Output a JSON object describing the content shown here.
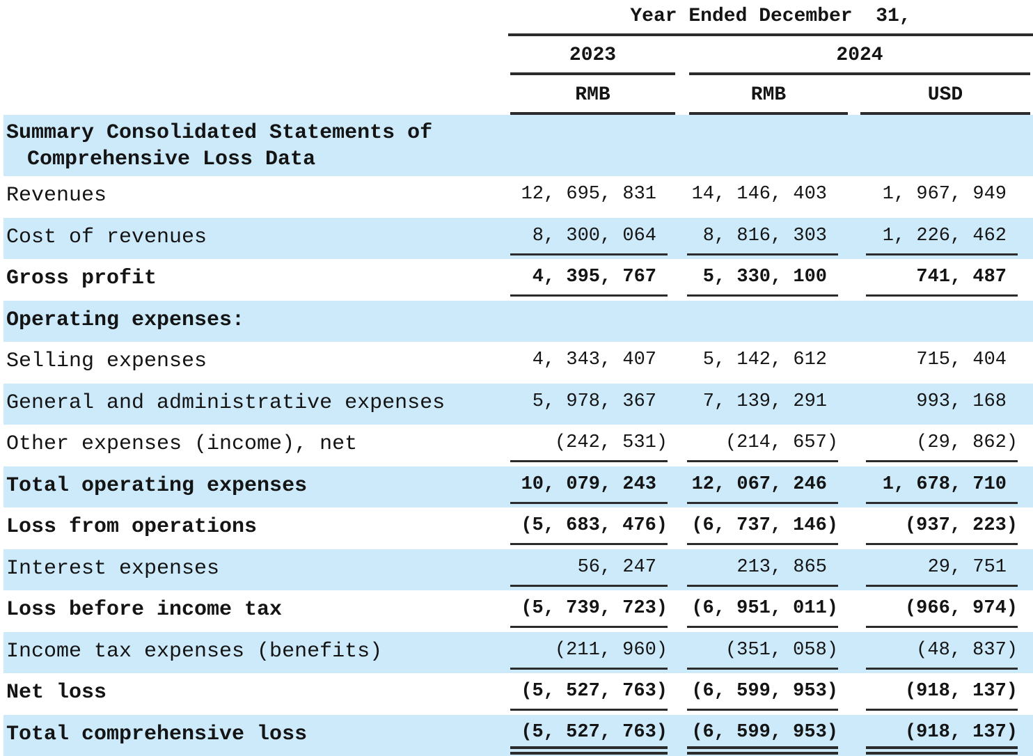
{
  "doc": {
    "header": {
      "period": "Year Ended December  31,",
      "year_left": "2023",
      "year_right": "2024",
      "cur_1": "RMB",
      "cur_2": "RMB",
      "cur_3": "USD"
    },
    "title_line1": "Summary Consolidated Statements of",
    "title_line2": "Comprehensive Loss Data",
    "rows": [
      {
        "label": "Revenues",
        "values": [
          "12, 695, 831",
          "14, 146, 403",
          "1, 967, 949"
        ]
      },
      {
        "label": "Cost of revenues",
        "values": [
          "8, 300, 064",
          "8, 816, 303",
          "1, 226, 462"
        ]
      },
      {
        "label": "Gross profit",
        "values": [
          "4, 395, 767",
          "5, 330, 100",
          "741, 487"
        ]
      },
      {
        "label": "Operating expenses:"
      },
      {
        "label": "Selling expenses",
        "values": [
          "4, 343, 407",
          "5, 142, 612",
          "715, 404"
        ]
      },
      {
        "label": "General and administrative expenses",
        "values": [
          "5, 978, 367",
          "7, 139, 291",
          "993, 168"
        ]
      },
      {
        "label": "Other expenses (income), net",
        "values": [
          "(242, 531)",
          "(214, 657)",
          "(29, 862)"
        ]
      },
      {
        "label": "Total operating expenses",
        "values": [
          "10, 079, 243",
          "12, 067, 246",
          "1, 678, 710"
        ]
      },
      {
        "label": "Loss from operations",
        "values": [
          "(5, 683, 476)",
          "(6, 737, 146)",
          "(937, 223)"
        ]
      },
      {
        "label": "Interest expenses",
        "values": [
          "56, 247",
          "213, 865",
          "29, 751"
        ]
      },
      {
        "label": "Loss before income tax",
        "values": [
          "(5, 739, 723)",
          "(6, 951, 011)",
          "(966, 974)"
        ]
      },
      {
        "label": "Income tax expenses (benefits)",
        "values": [
          "(211, 960)",
          "(351, 058)",
          "(48, 837)"
        ]
      },
      {
        "label": "Net loss",
        "values": [
          "(5, 527, 763)",
          "(6, 599, 953)",
          "(918, 137)"
        ]
      },
      {
        "label": "Total comprehensive loss",
        "values": [
          "(5, 527, 763)",
          "(6, 599, 953)",
          "(918, 137)"
        ]
      }
    ],
    "colors": {
      "band_blue": "#cdeafb",
      "rule": "#2b2b2b",
      "text": "#141414"
    }
  }
}
